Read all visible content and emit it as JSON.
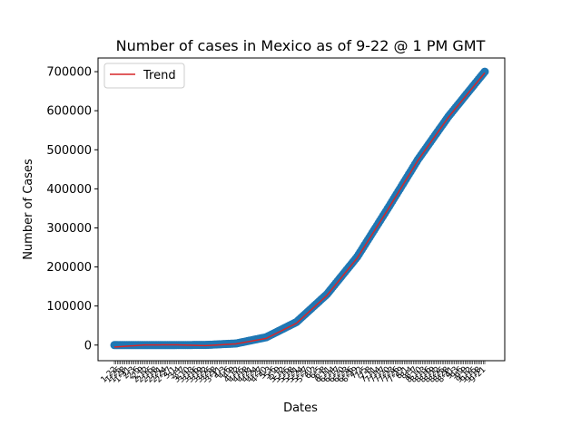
{
  "chart_data": {
    "type": "scatter",
    "title": "Number of cases in Mexico as of 9-22 @ 1 PM GMT",
    "xlabel": "Dates",
    "ylabel": "Number of Cases",
    "ylim": [
      -40000,
      735000
    ],
    "yticks": [
      0,
      100000,
      200000,
      300000,
      400000,
      500000,
      600000,
      700000
    ],
    "ytick_labels": [
      "0",
      "100000",
      "200000",
      "300000",
      "400000",
      "500000",
      "600000",
      "700000"
    ],
    "x_start": "1-22",
    "x_end": "9-22",
    "x_count": 245,
    "x_tick_labels": "dense, overlapping, rotated date labels (one per day from 1-22 to 9-22), illegible",
    "legend": {
      "location": "upper-left",
      "entries": [
        "Trend"
      ]
    },
    "series": [
      {
        "kind": "scatter",
        "color": "#1f77b4",
        "sample_dates": [
          "1-22",
          "2-11",
          "3-2",
          "3-22",
          "4-11",
          "5-1",
          "5-21",
          "6-10",
          "6-30",
          "7-20",
          "8-9",
          "8-29",
          "9-22"
        ],
        "sample_values": [
          0,
          0,
          5,
          300,
          4000,
          20000,
          59000,
          130000,
          226000,
          349000,
          475000,
          585000,
          700000
        ]
      },
      {
        "name": "Trend",
        "kind": "line",
        "color": "#d62728",
        "sample_dates": [
          "1-22",
          "2-11",
          "3-2",
          "3-22",
          "4-11",
          "5-1",
          "5-21",
          "6-10",
          "6-30",
          "7-20",
          "8-9",
          "8-29",
          "9-22"
        ],
        "sample_values": [
          -5000,
          200,
          700,
          -1500,
          3000,
          17000,
          56000,
          127000,
          223000,
          346000,
          473000,
          583000,
          697000
        ]
      }
    ]
  }
}
